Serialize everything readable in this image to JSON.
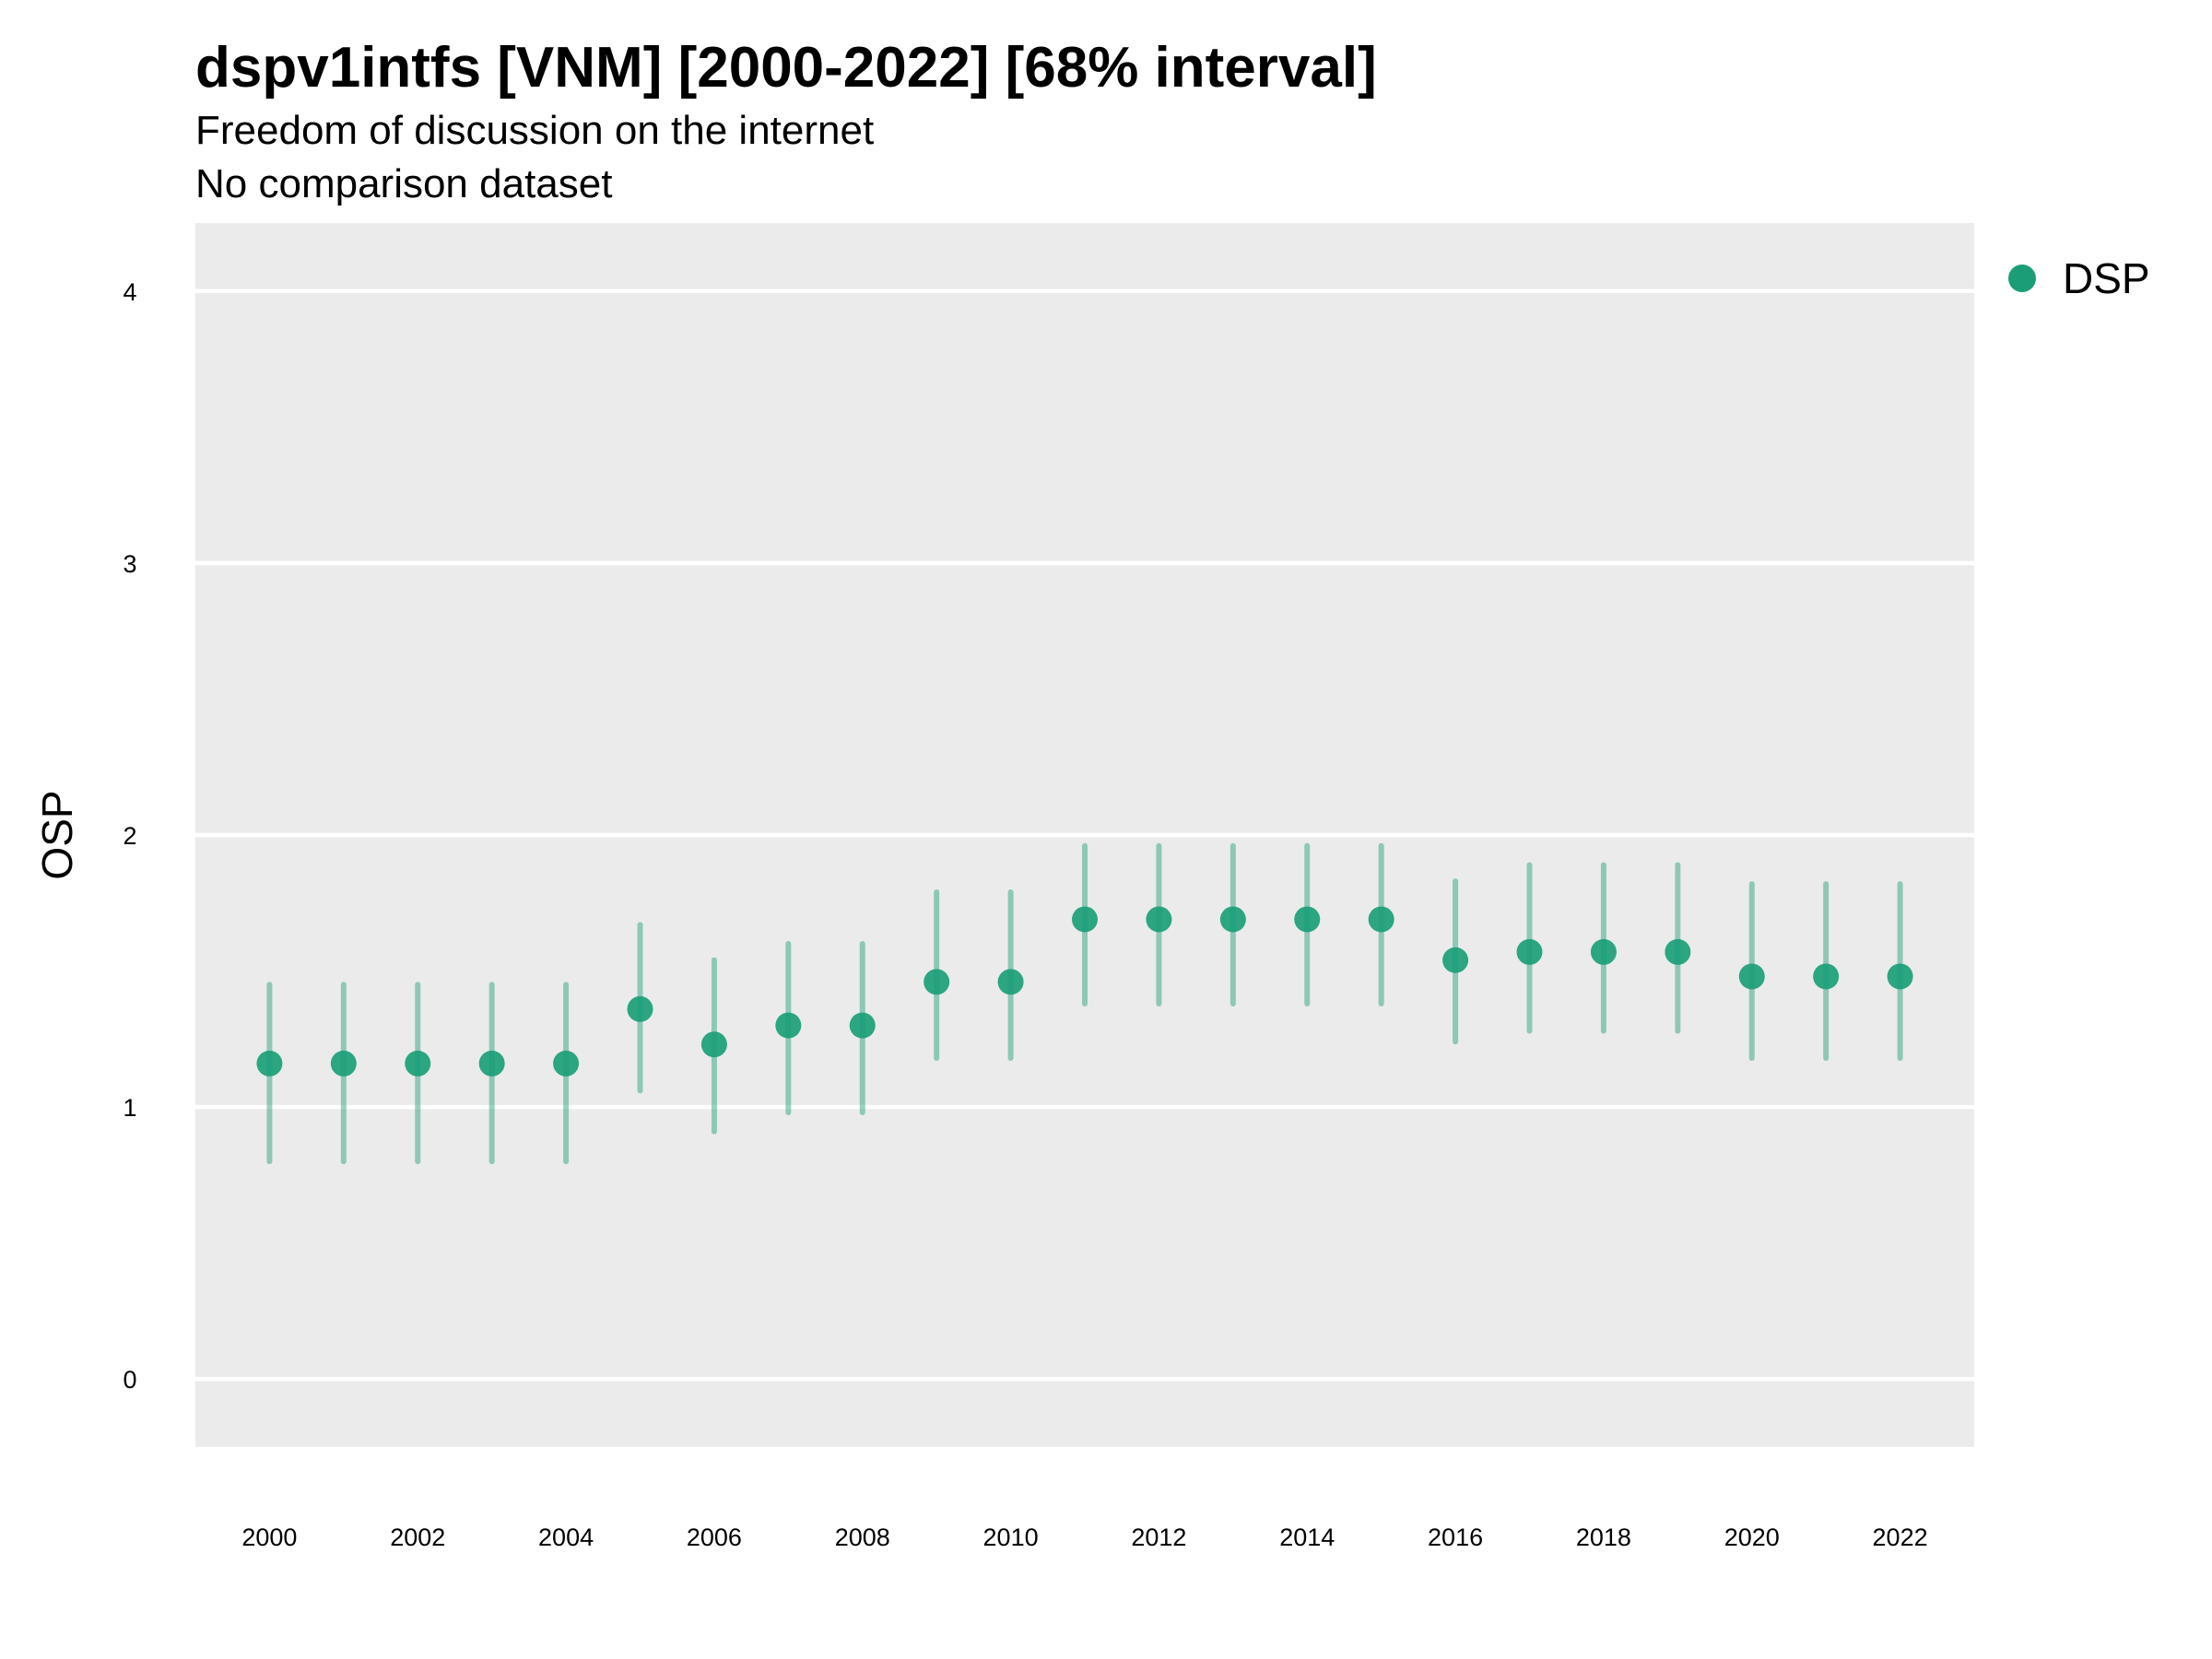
{
  "chart_data": {
    "type": "scatter",
    "title": "dspv1intfs [VNM] [2000-2022] [68% interval]",
    "subtitle": "Freedom of discussion on the internet",
    "subtitle2": "No comparison dataset",
    "xlabel": "",
    "ylabel": "OSP",
    "ylim": [
      -0.25,
      4.25
    ],
    "xlim": [
      1999,
      2023
    ],
    "y_ticks": [
      0,
      1,
      2,
      3,
      4
    ],
    "x_ticks": [
      2000,
      2002,
      2004,
      2006,
      2008,
      2010,
      2012,
      2014,
      2016,
      2018,
      2020,
      2022
    ],
    "grid": true,
    "legend_position": "top-right",
    "colors": {
      "panel_background": "#ebebeb",
      "grid_line": "#ffffff",
      "series": "#1b9e77"
    },
    "series": [
      {
        "name": "DSP",
        "x": [
          2000,
          2001,
          2002,
          2003,
          2004,
          2005,
          2006,
          2007,
          2008,
          2009,
          2010,
          2011,
          2012,
          2013,
          2014,
          2015,
          2016,
          2017,
          2018,
          2019,
          2020,
          2021,
          2022
        ],
        "y": [
          1.16,
          1.16,
          1.16,
          1.16,
          1.16,
          1.36,
          1.23,
          1.3,
          1.3,
          1.46,
          1.46,
          1.69,
          1.69,
          1.69,
          1.69,
          1.69,
          1.54,
          1.57,
          1.57,
          1.57,
          1.48,
          1.48,
          1.48
        ],
        "lower": [
          0.8,
          0.8,
          0.8,
          0.8,
          0.8,
          1.06,
          0.91,
          0.98,
          0.98,
          1.18,
          1.18,
          1.38,
          1.38,
          1.38,
          1.38,
          1.38,
          1.24,
          1.28,
          1.28,
          1.28,
          1.18,
          1.18,
          1.18
        ],
        "upper": [
          1.45,
          1.45,
          1.45,
          1.45,
          1.45,
          1.67,
          1.54,
          1.6,
          1.6,
          1.79,
          1.79,
          1.96,
          1.96,
          1.96,
          1.96,
          1.96,
          1.83,
          1.89,
          1.89,
          1.89,
          1.82,
          1.82,
          1.82
        ]
      }
    ]
  }
}
